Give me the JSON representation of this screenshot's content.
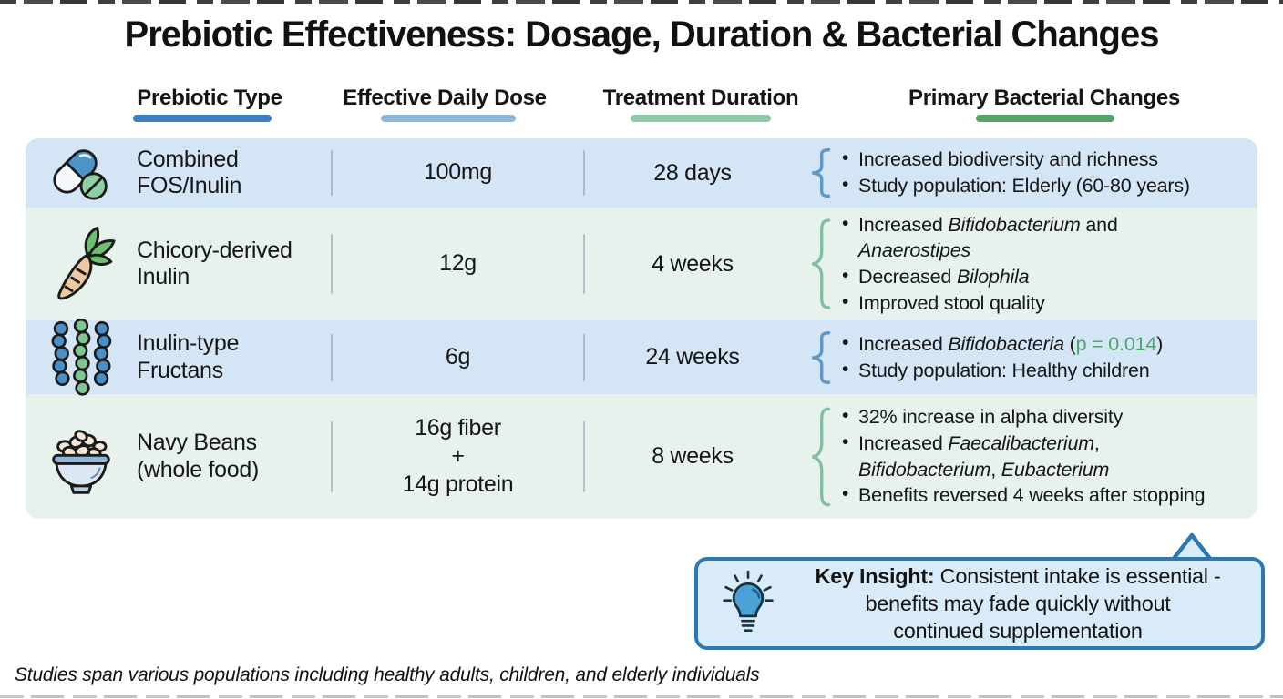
{
  "title": "Prebiotic Effectiveness: Dosage, Duration & Bacterial Changes",
  "colors": {
    "row_blue": "#d4e5f5",
    "row_green": "#e8f2ec",
    "brace_blue": "#6096c6",
    "brace_green": "#82bfa0",
    "insight_border": "#2e78b2",
    "insight_fill": "#d9eaf8",
    "p_value_green": "#4fa36a"
  },
  "columns": [
    {
      "label": "Prebiotic Type",
      "underline_color": "#3b7fc4"
    },
    {
      "label": "Effective Daily Dose",
      "underline_color": "#8cb8dc"
    },
    {
      "label": "Treatment Duration",
      "underline_color": "#8fcba4"
    },
    {
      "label": "Primary Bacterial Changes",
      "underline_color": "#57a269"
    }
  ],
  "rows": [
    {
      "icon": "pills-icon",
      "type": "Combined\nFOS/Inulin",
      "dose": "100mg",
      "duration": "28 days",
      "changes": [
        [
          {
            "t": "Increased biodiversity and richness"
          }
        ],
        [
          {
            "t": "Study population: Elderly (60-80 years)"
          }
        ]
      ]
    },
    {
      "icon": "chicory-root-icon",
      "type": "Chicory-derived\nInulin",
      "dose": "12g",
      "duration": "4 weeks",
      "changes": [
        [
          {
            "t": "Increased "
          },
          {
            "t": "Bifidobacterium",
            "i": 1
          },
          {
            "t": " and"
          },
          {
            "br": 1
          },
          {
            "t": "Anaerostipes",
            "i": 1
          }
        ],
        [
          {
            "t": "Decreased "
          },
          {
            "t": "Bilophila",
            "i": 1
          }
        ],
        [
          {
            "t": "Improved stool quality"
          }
        ]
      ]
    },
    {
      "icon": "fructan-chains-icon",
      "type": "Inulin-type\nFructans",
      "dose": "6g",
      "duration": "24 weeks",
      "changes": [
        [
          {
            "t": "Increased "
          },
          {
            "t": "Bifidobacteria",
            "i": 1
          },
          {
            "t": " ("
          },
          {
            "t": "p = 0.014",
            "c": "#4fa36a"
          },
          {
            "t": ")"
          }
        ],
        [
          {
            "t": "Study population: Healthy children"
          }
        ]
      ]
    },
    {
      "icon": "beans-bowl-icon",
      "type": "Navy Beans\n(whole food)",
      "dose": "16g fiber\n+\n14g protein",
      "duration": "8 weeks",
      "changes": [
        [
          {
            "t": "32% increase in alpha diversity"
          }
        ],
        [
          {
            "t": "Increased "
          },
          {
            "t": "Faecalibacterium",
            "i": 1
          },
          {
            "t": ","
          },
          {
            "br": 1
          },
          {
            "t": "Bifidobacterium",
            "i": 1
          },
          {
            "t": ", "
          },
          {
            "t": "Eubacterium",
            "i": 1
          }
        ],
        [
          {
            "t": "Benefits reversed 4 weeks after stopping"
          }
        ]
      ]
    }
  ],
  "insight": {
    "icon": "lightbulb-icon",
    "label": "Key Insight:",
    "line1": " Consistent intake is essential -",
    "line2": "benefits may fade quickly without",
    "line3": "continued supplementation"
  },
  "footer": {
    "text": "Studies span various populations including healthy adults, children, and elderly individuals"
  }
}
